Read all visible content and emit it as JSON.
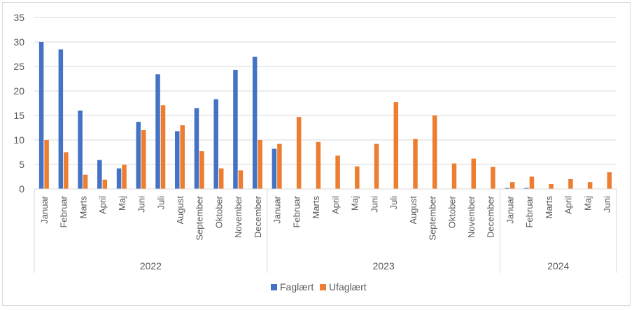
{
  "chart_data": {
    "type": "bar",
    "ylim": [
      0,
      35
    ],
    "yticks": [
      0,
      5,
      10,
      15,
      20,
      25,
      30,
      35
    ],
    "grid": true,
    "legend_position": "bottom",
    "categories": [
      "Januar",
      "Februar",
      "Marts",
      "April",
      "Maj",
      "Juni",
      "Juli",
      "August",
      "September",
      "Oktober",
      "November",
      "December",
      "Januar",
      "Februar",
      "Marts",
      "April",
      "Maj",
      "Juni",
      "Juli",
      "August",
      "September",
      "Oktober",
      "November",
      "December",
      "Januar",
      "Februar",
      "Marts",
      "April",
      "Maj",
      "Juni"
    ],
    "groups": [
      {
        "label": "2022",
        "count": 12
      },
      {
        "label": "2023",
        "count": 12
      },
      {
        "label": "2024",
        "count": 6
      }
    ],
    "series": [
      {
        "name": "Faglært",
        "color": "#4472c4",
        "values": [
          30.0,
          28.5,
          16.0,
          5.9,
          4.2,
          13.7,
          23.4,
          11.8,
          16.5,
          18.3,
          24.3,
          27.0,
          8.2,
          0,
          0,
          0,
          0,
          0,
          0,
          0,
          0,
          0,
          0,
          0,
          0.2,
          0.2,
          0,
          0,
          0,
          0
        ]
      },
      {
        "name": "Ufaglært",
        "color": "#ed7d31",
        "values": [
          10.0,
          7.5,
          2.9,
          1.9,
          4.9,
          12.0,
          17.1,
          13.0,
          7.7,
          4.2,
          3.8,
          10.0,
          9.2,
          14.7,
          9.6,
          6.8,
          4.6,
          9.2,
          17.7,
          10.2,
          15.0,
          5.2,
          6.2,
          4.5,
          1.4,
          2.5,
          1.0,
          2.0,
          1.4,
          3.4
        ]
      }
    ],
    "xlabel": "",
    "ylabel": "",
    "title": ""
  }
}
